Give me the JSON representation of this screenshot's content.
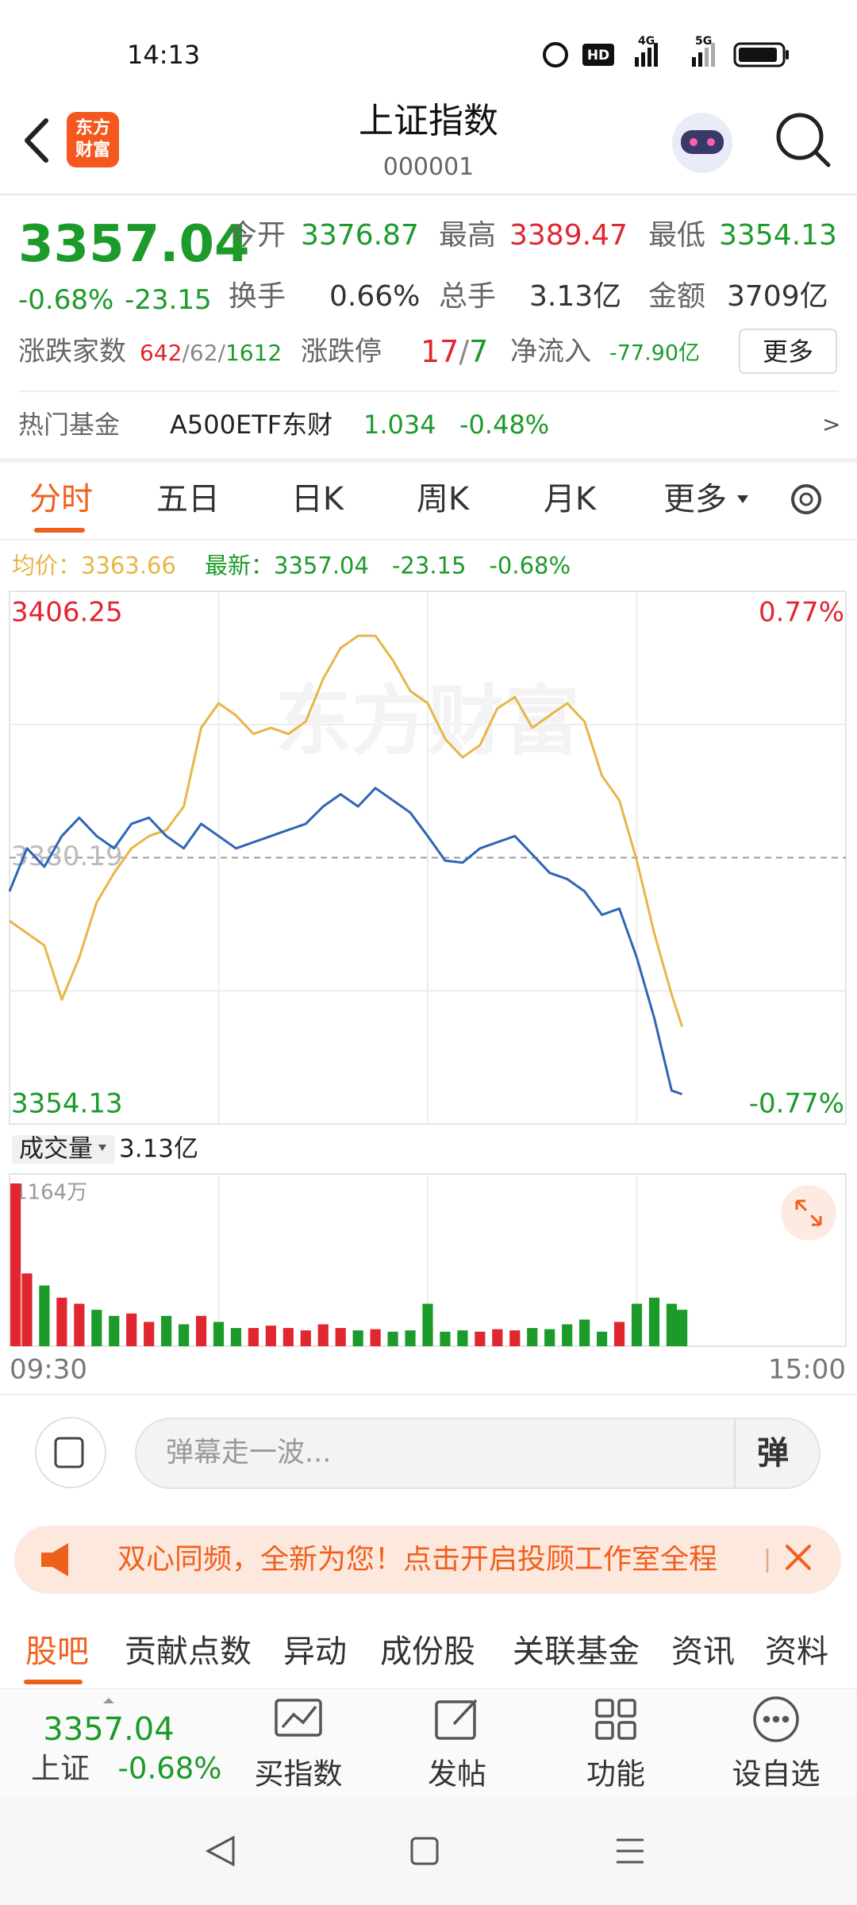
{
  "status_bar": {
    "time": "14:13",
    "hd": "HD",
    "net1": "4G",
    "net2": "5G"
  },
  "header": {
    "logo": [
      "东方",
      "财富"
    ],
    "title": "上证指数",
    "code": "000001"
  },
  "quote": {
    "price": "3357.04",
    "change_pct": "-0.68%",
    "change": "-23.15",
    "open": {
      "label": "今开",
      "value": "3376.87"
    },
    "high": {
      "label": "最高",
      "value": "3389.47"
    },
    "low": {
      "label": "最低",
      "value": "3354.13"
    },
    "turnover": {
      "label": "换手",
      "value": "0.66%"
    },
    "volume": {
      "label": "总手",
      "value": "3.13亿"
    },
    "amount": {
      "label": "金额",
      "value": "3709亿"
    },
    "breadth": {
      "label": "涨跌家数",
      "up": "642",
      "flat": "62",
      "down": "1612",
      "separator": "/"
    },
    "limit": {
      "label": "涨跌停",
      "up": "17",
      "down": "7",
      "separator": "/"
    },
    "net_inflow": {
      "label": "净流入",
      "value": "-77.90亿"
    },
    "more": "更多"
  },
  "hot_fund": {
    "label": "热门基金",
    "name": "A500ETF东财",
    "price": "1.034",
    "change_pct": "-0.48%",
    "arrow": ">"
  },
  "chart_tabs": [
    "分时",
    "五日",
    "日K",
    "周K",
    "月K",
    "更多"
  ],
  "chart_data": [
    {
      "type": "line",
      "watermark": "东方财富",
      "x": [
        "09:30",
        "09:35",
        "09:40",
        "09:45",
        "09:50",
        "09:55",
        "10:00",
        "10:05",
        "10:10",
        "10:15",
        "10:20",
        "10:25",
        "10:30",
        "10:35",
        "10:40",
        "10:45",
        "10:50",
        "10:55",
        "11:00",
        "11:05",
        "11:10",
        "11:15",
        "11:20",
        "11:25",
        "11:30",
        "13:05",
        "13:10",
        "13:15",
        "13:20",
        "13:25",
        "13:30",
        "13:35",
        "13:40",
        "13:45",
        "13:50",
        "13:55",
        "14:00",
        "14:05",
        "14:10",
        "14:13"
      ],
      "xlim": [
        "09:30",
        "15:00"
      ],
      "series": [
        {
          "name": "均价：",
          "color": "#e9b547",
          "legend_value": "3363.66",
          "values": [
            3374.0,
            3372.8,
            3371.6,
            3366.3,
            3370.4,
            3375.8,
            3378.7,
            3381.1,
            3382.3,
            3382.9,
            3385.2,
            3392.9,
            3395.3,
            3394.1,
            3392.3,
            3392.9,
            3392.3,
            3393.5,
            3397.7,
            3400.7,
            3401.9,
            3401.9,
            3399.5,
            3396.5,
            3395.3,
            3391.8,
            3390.0,
            3391.2,
            3394.8,
            3395.9,
            3392.9,
            3394.1,
            3395.3,
            3393.5,
            3388.2,
            3385.8,
            3379.9,
            3372.8,
            3366.8,
            3363.66
          ]
        },
        {
          "name": "最新：",
          "color": "#2f65b5",
          "legend_value": "3357.04",
          "legend_change": "-23.15",
          "legend_change_pct": "-0.68%",
          "values": [
            3376.9,
            3381.1,
            3379.3,
            3382.3,
            3384.1,
            3382.3,
            3381.1,
            3383.5,
            3384.1,
            3382.3,
            3381.1,
            3383.5,
            3382.3,
            3381.1,
            3381.7,
            3382.3,
            3382.9,
            3383.5,
            3385.2,
            3386.4,
            3385.2,
            3387.0,
            3385.8,
            3384.6,
            3382.3,
            3379.9,
            3379.7,
            3381.1,
            3381.7,
            3382.3,
            3380.5,
            3378.7,
            3378.1,
            3376.9,
            3374.6,
            3375.2,
            3370.4,
            3364.5,
            3357.4,
            3357.04
          ]
        }
      ],
      "ylim": [
        3354.13,
        3406.25
      ],
      "yticks": [
        3406.25,
        3380.19,
        3354.13
      ],
      "y2lim": [
        -0.77,
        0.77
      ],
      "y2ticks": [
        {
          "value": 0.77,
          "label": "0.77%"
        },
        {
          "value": -0.77,
          "label": "-0.77%"
        }
      ],
      "up_color": "#e0262f",
      "down_color": "#1c9a2a"
    },
    {
      "type": "bar",
      "title": "成交量",
      "total": "3.13亿",
      "x": [
        "09:30",
        "09:35",
        "09:40",
        "09:45",
        "09:50",
        "09:55",
        "10:00",
        "10:05",
        "10:10",
        "10:15",
        "10:20",
        "10:25",
        "10:30",
        "10:35",
        "10:40",
        "10:45",
        "10:50",
        "10:55",
        "11:00",
        "11:05",
        "11:10",
        "11:15",
        "11:20",
        "11:25",
        "11:30",
        "13:05",
        "13:10",
        "13:15",
        "13:20",
        "13:25",
        "13:30",
        "13:35",
        "13:40",
        "13:45",
        "13:50",
        "13:55",
        "14:00",
        "14:05",
        "14:10",
        "14:13"
      ],
      "xlim": [
        "09:30",
        "15:00"
      ],
      "xticks": [
        "09:30",
        "15:00"
      ],
      "values": [
        1100,
        492,
        410,
        328,
        287,
        246,
        205,
        221,
        164,
        205,
        148,
        205,
        164,
        123,
        123,
        139,
        123,
        107,
        148,
        123,
        107,
        115,
        98,
        107,
        287,
        98,
        107,
        98,
        115,
        107,
        123,
        115,
        148,
        180,
        98,
        164,
        287,
        328,
        287,
        246
      ],
      "ylim": [
        0,
        1164
      ],
      "yticks": [
        {
          "value": 1164,
          "label": "1164万"
        }
      ],
      "up_color": "#e0262f",
      "down_color": "#1c9a2a"
    }
  ],
  "danmaku": {
    "placeholder": "弹幕走一波...",
    "button": "弹"
  },
  "banner": {
    "text": "双心同频，全新为您！点击开启投顾工作室全程",
    "divider": "|"
  },
  "content_tabs": [
    "股吧",
    "贡献点数",
    "异动",
    "成份股",
    "关联基金",
    "资讯",
    "资料"
  ],
  "bottom_bar": {
    "price": "3357.04",
    "name": "上证",
    "change_pct": "-0.68%",
    "actions": [
      "买指数",
      "发帖",
      "功能",
      "设自选"
    ]
  }
}
